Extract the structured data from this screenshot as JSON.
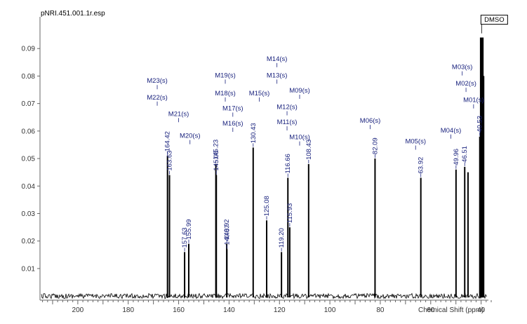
{
  "chart_data": {
    "type": "nmr-spectrum",
    "title": "pNRI.451.001.1r.esp",
    "xlabel": "Chemical Shift (ppm)",
    "ylabel": "",
    "xlim": [
      215,
      36
    ],
    "ylim": [
      -0.0015,
      0.1
    ],
    "x_ticks": [
      200,
      180,
      160,
      140,
      120,
      100,
      80,
      60,
      40
    ],
    "y_ticks": [
      0.01,
      0.02,
      0.03,
      0.04,
      0.05,
      0.06,
      0.07,
      0.08,
      0.09
    ],
    "x_tick_labels": [
      "200",
      "180",
      "160",
      "140",
      "120",
      "100",
      "80",
      "60",
      "40"
    ],
    "y_tick_labels": [
      "0.01",
      "0.02",
      "0.03",
      "0.04",
      "0.05",
      "0.06",
      "0.07",
      "0.08",
      "0.09"
    ],
    "peaks": [
      {
        "ppm": 164.42,
        "label": "164.42",
        "height": 0.051
      },
      {
        "ppm": 163.63,
        "label": "163.63",
        "height": 0.044
      },
      {
        "ppm": 157.63,
        "label": "157.63",
        "height": 0.016
      },
      {
        "ppm": 155.99,
        "label": "155.99",
        "height": 0.019
      },
      {
        "ppm": 145.23,
        "label": "145.23",
        "height": 0.048
      },
      {
        "ppm": 145.06,
        "label": "145.06",
        "height": 0.044
      },
      {
        "ppm": 140.92,
        "label": "140.92",
        "height": 0.019
      },
      {
        "ppm": 140.87,
        "label": "140.87",
        "height": 0.017
      },
      {
        "ppm": 130.43,
        "label": "130.43",
        "height": 0.054
      },
      {
        "ppm": 125.08,
        "label": "125.08",
        "height": 0.0275
      },
      {
        "ppm": 119.2,
        "label": "119.20",
        "height": 0.016
      },
      {
        "ppm": 116.66,
        "label": "116.66",
        "height": 0.043
      },
      {
        "ppm": 115.93,
        "label": "115.93",
        "height": 0.025
      },
      {
        "ppm": 108.43,
        "label": "108.43",
        "height": 0.048
      },
      {
        "ppm": 82.09,
        "label": "82.09",
        "height": 0.05
      },
      {
        "ppm": 63.92,
        "label": "63.92",
        "height": 0.043
      },
      {
        "ppm": 49.96,
        "label": "49.96",
        "height": 0.046
      },
      {
        "ppm": 46.51,
        "label": "46.51",
        "height": 0.047
      },
      {
        "ppm": 45.2,
        "label": "",
        "height": 0.045
      },
      {
        "ppm": 40.53,
        "label": "40.53",
        "height": 0.058
      },
      {
        "ppm": 40.2,
        "label": "",
        "height": 0.094
      },
      {
        "ppm": 39.9,
        "label": "",
        "height": 0.094
      },
      {
        "ppm": 39.6,
        "label": "",
        "height": 0.094
      },
      {
        "ppm": 39.3,
        "label": "",
        "height": 0.094
      },
      {
        "ppm": 39.0,
        "label": "",
        "height": 0.08
      }
    ],
    "multiplets": [
      {
        "label": "M23(s)",
        "ppm": 168.5,
        "y": 0.0775
      },
      {
        "label": "M22(s)",
        "ppm": 168.5,
        "y": 0.0715
      },
      {
        "label": "M21(s)",
        "ppm": 160.0,
        "y": 0.0655
      },
      {
        "label": "M20(s)",
        "ppm": 155.5,
        "y": 0.0575
      },
      {
        "label": "M19(s)",
        "ppm": 141.5,
        "y": 0.0795
      },
      {
        "label": "M18(s)",
        "ppm": 141.5,
        "y": 0.073
      },
      {
        "label": "M17(s)",
        "ppm": 138.5,
        "y": 0.0675
      },
      {
        "label": "M16(s)",
        "ppm": 138.5,
        "y": 0.062
      },
      {
        "label": "M15(s)",
        "ppm": 128.0,
        "y": 0.073
      },
      {
        "label": "M14(s)",
        "ppm": 121.0,
        "y": 0.0855
      },
      {
        "label": "M13(s)",
        "ppm": 121.0,
        "y": 0.0795
      },
      {
        "label": "M12(s)",
        "ppm": 117.0,
        "y": 0.068
      },
      {
        "label": "M11(s)",
        "ppm": 117.0,
        "y": 0.0625
      },
      {
        "label": "M10(s)",
        "ppm": 112.0,
        "y": 0.057
      },
      {
        "label": "M09(s)",
        "ppm": 112.0,
        "y": 0.074
      },
      {
        "label": "M06(s)",
        "ppm": 84.0,
        "y": 0.063
      },
      {
        "label": "M05(s)",
        "ppm": 66.0,
        "y": 0.0555
      },
      {
        "label": "M04(s)",
        "ppm": 52.0,
        "y": 0.0595
      },
      {
        "label": "M03(s)",
        "ppm": 47.5,
        "y": 0.0825
      },
      {
        "label": "M02(s)",
        "ppm": 46.0,
        "y": 0.0765
      },
      {
        "label": "M01(s)",
        "ppm": 43.0,
        "y": 0.0705
      }
    ],
    "annotations": [
      {
        "text": "DMSO",
        "ppm": 39.8,
        "y": 0.095
      }
    ]
  }
}
